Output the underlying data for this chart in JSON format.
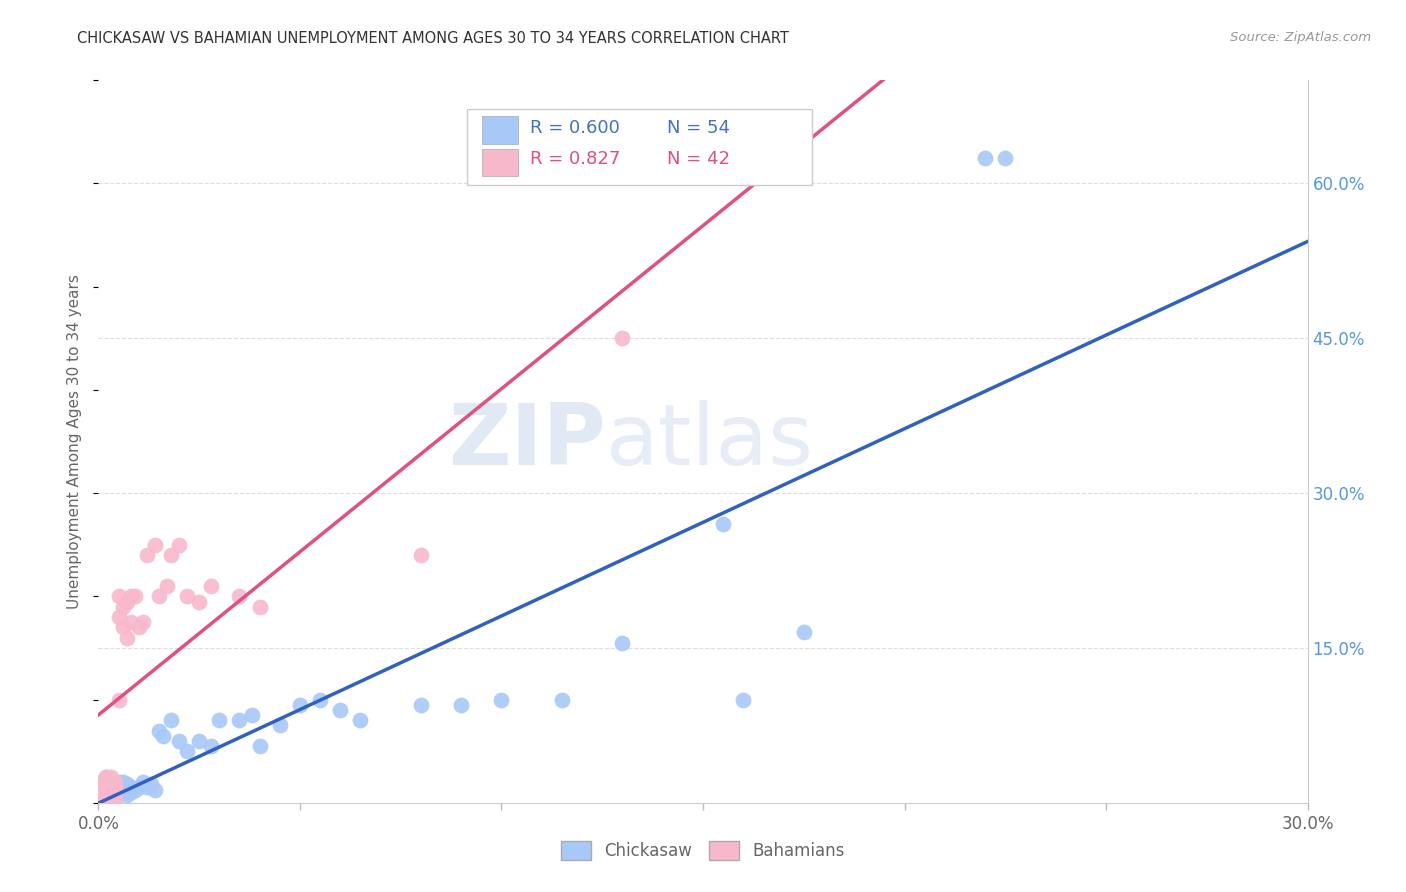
{
  "title": "CHICKASAW VS BAHAMIAN UNEMPLOYMENT AMONG AGES 30 TO 34 YEARS CORRELATION CHART",
  "source": "Source: ZipAtlas.com",
  "ylabel": "Unemployment Among Ages 30 to 34 years",
  "xlim": [
    0.0,
    0.3
  ],
  "ylim": [
    0.0,
    0.7
  ],
  "xtick_positions": [
    0.0,
    0.05,
    0.1,
    0.15,
    0.2,
    0.25,
    0.3
  ],
  "yticks_right": [
    0.0,
    0.15,
    0.3,
    0.45,
    0.6
  ],
  "ytick_labels_right": [
    "",
    "15.0%",
    "30.0%",
    "45.0%",
    "60.0%"
  ],
  "blue_color": "#A8C8F8",
  "pink_color": "#F8B8CC",
  "blue_line_color": "#3060C0",
  "pink_line_color": "#E05080",
  "legend_blue_r": "R = 0.600",
  "legend_blue_n": "N = 54",
  "legend_pink_r": "R = 0.827",
  "legend_pink_n": "N = 42",
  "watermark_zip": "ZIP",
  "watermark_atlas": "atlas",
  "chickasaw_x": [
    0.001,
    0.001,
    0.001,
    0.002,
    0.002,
    0.002,
    0.002,
    0.003,
    0.003,
    0.003,
    0.003,
    0.004,
    0.004,
    0.005,
    0.005,
    0.005,
    0.006,
    0.006,
    0.007,
    0.007,
    0.008,
    0.008,
    0.009,
    0.01,
    0.011,
    0.012,
    0.013,
    0.014,
    0.015,
    0.016,
    0.018,
    0.02,
    0.022,
    0.025,
    0.028,
    0.03,
    0.035,
    0.038,
    0.04,
    0.045,
    0.05,
    0.055,
    0.06,
    0.065,
    0.08,
    0.09,
    0.1,
    0.115,
    0.13,
    0.155,
    0.16,
    0.175,
    0.22,
    0.225
  ],
  "chickasaw_y": [
    0.02,
    0.015,
    0.01,
    0.025,
    0.018,
    0.012,
    0.008,
    0.02,
    0.015,
    0.01,
    0.005,
    0.018,
    0.012,
    0.02,
    0.015,
    0.008,
    0.02,
    0.01,
    0.018,
    0.008,
    0.015,
    0.01,
    0.012,
    0.015,
    0.02,
    0.015,
    0.018,
    0.012,
    0.07,
    0.065,
    0.08,
    0.06,
    0.05,
    0.06,
    0.055,
    0.08,
    0.08,
    0.085,
    0.055,
    0.075,
    0.095,
    0.1,
    0.09,
    0.08,
    0.095,
    0.095,
    0.1,
    0.1,
    0.155,
    0.27,
    0.1,
    0.165,
    0.625,
    0.625
  ],
  "bahamian_x": [
    0.001,
    0.001,
    0.001,
    0.001,
    0.001,
    0.002,
    0.002,
    0.002,
    0.002,
    0.003,
    0.003,
    0.003,
    0.003,
    0.004,
    0.004,
    0.004,
    0.004,
    0.005,
    0.005,
    0.005,
    0.006,
    0.006,
    0.007,
    0.007,
    0.008,
    0.008,
    0.009,
    0.01,
    0.011,
    0.012,
    0.014,
    0.015,
    0.017,
    0.018,
    0.02,
    0.022,
    0.025,
    0.028,
    0.035,
    0.04,
    0.08,
    0.13
  ],
  "bahamian_y": [
    0.02,
    0.015,
    0.01,
    0.008,
    0.005,
    0.025,
    0.018,
    0.012,
    0.008,
    0.025,
    0.018,
    0.012,
    0.005,
    0.02,
    0.015,
    0.01,
    0.005,
    0.2,
    0.18,
    0.1,
    0.19,
    0.17,
    0.195,
    0.16,
    0.2,
    0.175,
    0.2,
    0.17,
    0.175,
    0.24,
    0.25,
    0.2,
    0.21,
    0.24,
    0.25,
    0.2,
    0.195,
    0.21,
    0.2,
    0.19,
    0.24,
    0.45
  ]
}
